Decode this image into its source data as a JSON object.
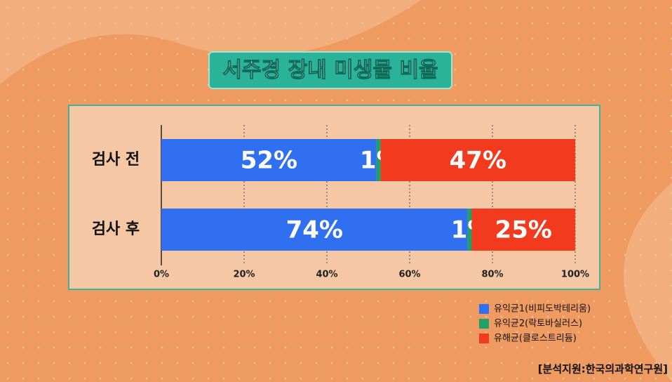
{
  "chart_data": {
    "type": "stacked-bar-horizontal",
    "title": "서주경 장내 미생물 비율",
    "source": "[분석지원:한국의과학연구원]",
    "categories": [
      "검사 전",
      "검사 후"
    ],
    "series": [
      {
        "name": "유익균1(비피도박테리움)",
        "color": "#2f6ff0",
        "values": [
          52,
          74
        ],
        "value_labels": [
          "52%",
          "74%"
        ]
      },
      {
        "name": "유익균2(락토바실러스)",
        "color": "#1fa067",
        "values": [
          1,
          1
        ],
        "value_labels": [
          "1%",
          "1%"
        ]
      },
      {
        "name": "유해균(클로스트리듐)",
        "color": "#f23a1e",
        "values": [
          47,
          25
        ],
        "value_labels": [
          "47%",
          "25%"
        ]
      }
    ],
    "xlim": [
      0,
      100
    ],
    "xticks": [
      {
        "value": 0,
        "label": "0%"
      },
      {
        "value": 20,
        "label": "20%"
      },
      {
        "value": 40,
        "label": "40%"
      },
      {
        "value": 60,
        "label": "60%"
      },
      {
        "value": 80,
        "label": "80%"
      },
      {
        "value": 100,
        "label": "100%"
      }
    ],
    "grid": true,
    "legend": "bottom-right"
  }
}
